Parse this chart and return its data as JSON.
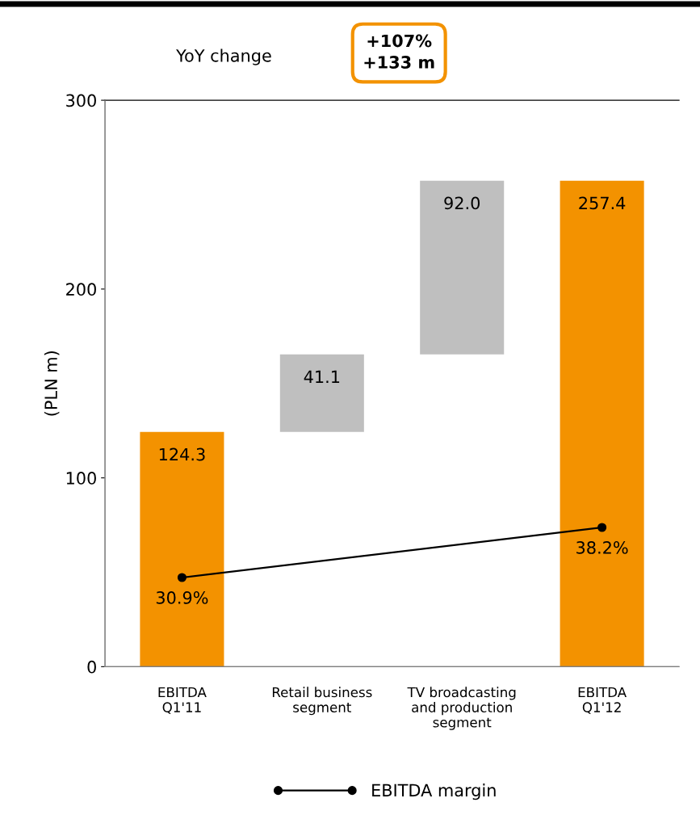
{
  "chart_data": {
    "type": "bar",
    "categories": [
      "EBITDA\nQ1'11",
      "Retail business\nsegment",
      "TV broadcasting\nand production\nsegment",
      "EBITDA\nQ1'12"
    ],
    "ylabel": "(PLN m)",
    "series": [
      {
        "colors": [
          "#f39200",
          "#bfbfbf",
          "#bfbfbf",
          "#f39200"
        ],
        "base": [
          0,
          124.3,
          165.4,
          0
        ],
        "values": [
          124.3,
          41.1,
          92.0,
          257.4
        ],
        "value_labels": [
          "124.3",
          "41.1",
          "92.0",
          "257.4"
        ]
      },
      {
        "type": "line",
        "name": "EBITDA margin",
        "color": "#000000",
        "axis": "y2",
        "marker": "circle",
        "values": [
          30.9,
          null,
          null,
          38.2
        ],
        "value_labels": [
          "30.9%",
          null,
          null,
          "38.2%"
        ]
      }
    ],
    "ylim": [
      0,
      300
    ],
    "yticks": [
      0,
      100,
      200,
      300
    ],
    "y2lim": [
      17.9,
      100.5
    ],
    "tick_labels": "y",
    "legend": "bottom",
    "grid": false,
    "annotations": [
      "YoY change",
      "+107%\n+133 m"
    ]
  }
}
